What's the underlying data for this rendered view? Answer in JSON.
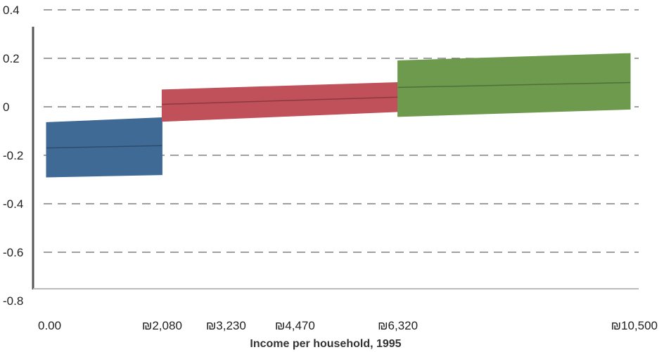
{
  "chart_data": {
    "type": "area",
    "title": "",
    "xlabel": "Income per household, 1995",
    "ylabel": "",
    "ylim": [
      -0.8,
      0.4
    ],
    "xlim": [
      0,
      10500
    ],
    "yticks": [
      0.4,
      0.2,
      0,
      -0.2,
      -0.4,
      -0.6,
      -0.8
    ],
    "ytick_labels": [
      "0.4",
      "0.2",
      "0",
      "-0.2",
      "-0.4",
      "-0.6",
      "-0.8"
    ],
    "xticks": [
      0,
      2080,
      3230,
      4470,
      6320,
      10500
    ],
    "xtick_labels": [
      "0.00",
      "₪2,080",
      "₪3,230",
      "₪4,470",
      "₪6,320",
      "₪10,500"
    ],
    "grid": "horizontal dashed",
    "series": [
      {
        "color": "#3f6a96",
        "x": [
          0,
          2080
        ],
        "upper": [
          -0.065,
          -0.045
        ],
        "mid": [
          -0.17,
          -0.16
        ],
        "lower": [
          -0.29,
          -0.28
        ]
      },
      {
        "color": "#c0505a",
        "x": [
          2080,
          6320
        ],
        "upper": [
          0.07,
          0.1
        ],
        "mid": [
          0.01,
          0.04
        ],
        "lower": [
          -0.06,
          -0.02
        ]
      },
      {
        "color": "#6e9a4e",
        "x": [
          6320,
          10500
        ],
        "upper": [
          0.19,
          0.22
        ],
        "mid": [
          0.08,
          0.1
        ],
        "lower": [
          -0.04,
          -0.01
        ]
      }
    ]
  }
}
